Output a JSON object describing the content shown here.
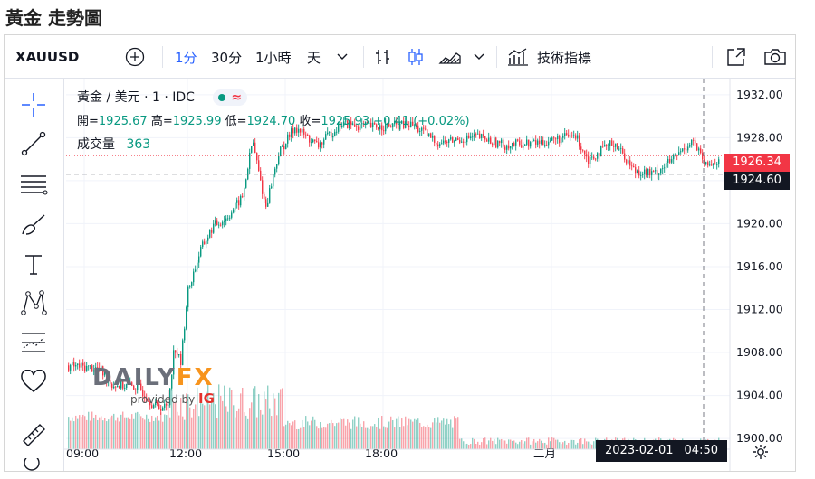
{
  "page_title": "黃金 走勢圖",
  "toolbar": {
    "symbol": "XAUUSD",
    "intervals": [
      "1分",
      "30分",
      "1小時",
      "天"
    ],
    "active_interval": "1分",
    "indicators_label": "技術指標",
    "icons": [
      "add-compare-icon",
      "chevron-down-icon",
      "bar-style-icon",
      "candle-style-icon",
      "area-style-icon",
      "indicators-icon",
      "fullscreen-icon",
      "camera-icon"
    ]
  },
  "left_tools": [
    "crosshair-icon",
    "trendline-icon",
    "fib-icon",
    "brush-icon",
    "text-icon",
    "pattern-icon",
    "forecast-icon",
    "favorite-icon",
    "ruler-icon"
  ],
  "legend": {
    "title": "黃金 / 美元 · 1 · IDC",
    "open_label": "開=",
    "open": "1925.67",
    "high_label": "高=",
    "high": "1925.99",
    "low_label": "低=",
    "low": "1924.70",
    "close_label": "收=",
    "close": "1925.93",
    "change": "+0.41 (+0.02%)",
    "volume_label": "成交量",
    "volume": "363",
    "wave_symbol": "≈"
  },
  "price_tags": {
    "last": "1926.34",
    "crosshair": "1924.60",
    "last_color": "#f23645",
    "crosshair_color": "#131722"
  },
  "time_tag": {
    "date": "2023-02-01",
    "time": "04:50"
  },
  "watermark": {
    "brand_left": "DAILY",
    "brand_right": "FX",
    "provided": "provided by",
    "ig": "IG"
  },
  "colors": {
    "up": "#089981",
    "down": "#f23645",
    "accent": "#2962ff"
  },
  "chart_data": {
    "type": "candlestick",
    "y_ticks": [
      "1932.00",
      "1928.00",
      "1924.00",
      "1920.00",
      "1916.00",
      "1912.00",
      "1908.00",
      "1904.00",
      "1900.00"
    ],
    "x_ticks": [
      "09:00",
      "12:00",
      "15:00",
      "18:00",
      "二月"
    ],
    "ylim": [
      1899,
      1933.5
    ],
    "price_path": [
      {
        "t": 0,
        "p": 1906.8
      },
      {
        "t": 0.05,
        "p": 1906.5
      },
      {
        "t": 0.07,
        "p": 1905.0
      },
      {
        "t": 0.11,
        "p": 1904.8
      },
      {
        "t": 0.135,
        "p": 1903.0
      },
      {
        "t": 0.155,
        "p": 1902.9
      },
      {
        "t": 0.165,
        "p": 1908.6
      },
      {
        "t": 0.175,
        "p": 1907.0
      },
      {
        "t": 0.185,
        "p": 1913.5
      },
      {
        "t": 0.205,
        "p": 1917.5
      },
      {
        "t": 0.225,
        "p": 1919.8
      },
      {
        "t": 0.245,
        "p": 1920.5
      },
      {
        "t": 0.27,
        "p": 1922.5
      },
      {
        "t": 0.285,
        "p": 1927.8
      },
      {
        "t": 0.305,
        "p": 1921.5
      },
      {
        "t": 0.325,
        "p": 1926.5
      },
      {
        "t": 0.35,
        "p": 1929.0
      },
      {
        "t": 0.385,
        "p": 1927.2
      },
      {
        "t": 0.42,
        "p": 1929.3
      },
      {
        "t": 0.47,
        "p": 1929.0
      },
      {
        "t": 0.53,
        "p": 1929.2
      },
      {
        "t": 0.57,
        "p": 1927.5
      },
      {
        "t": 0.63,
        "p": 1928.1
      },
      {
        "t": 0.67,
        "p": 1927.3
      },
      {
        "t": 0.73,
        "p": 1927.6
      },
      {
        "t": 0.78,
        "p": 1928.2
      },
      {
        "t": 0.8,
        "p": 1926.0
      },
      {
        "t": 0.84,
        "p": 1927.6
      },
      {
        "t": 0.87,
        "p": 1925.0
      },
      {
        "t": 0.9,
        "p": 1924.6
      },
      {
        "t": 0.93,
        "p": 1926.0
      },
      {
        "t": 0.96,
        "p": 1927.8
      },
      {
        "t": 0.98,
        "p": 1925.3
      },
      {
        "t": 1.0,
        "p": 1925.9
      }
    ]
  }
}
